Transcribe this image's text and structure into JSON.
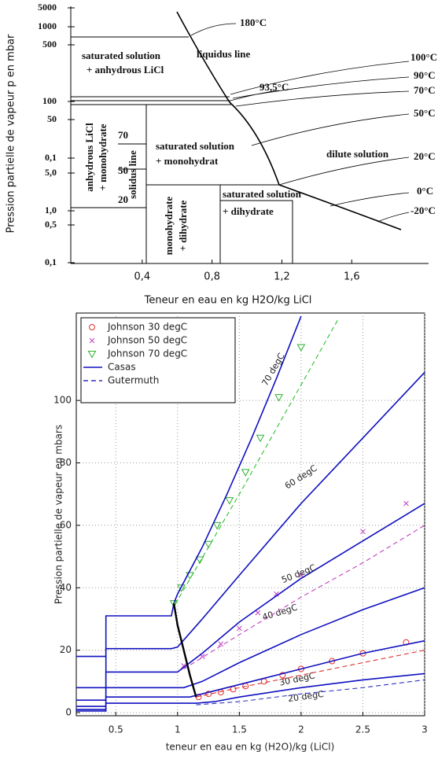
{
  "chart_data": [
    {
      "type": "phase-diagram",
      "ylabel": "Pression partielle de vapeur p en mbar",
      "xlabel": "Teneur en eau en kg H2O/kg LiCl",
      "xlim": [
        0,
        2.04
      ],
      "xticks": [
        {
          "value": 0.4,
          "label": "0,4"
        },
        {
          "value": 0.8,
          "label": "0,8"
        },
        {
          "value": 1.2,
          "label": "1,2"
        },
        {
          "value": 1.6,
          "label": "1,6"
        }
      ],
      "y_labels": [
        "5000",
        "1000",
        "500",
        "100",
        "50",
        "0,1",
        "5,0",
        "1,0",
        "0,5",
        "0,1"
      ],
      "regions": [
        {
          "text": [
            "saturated solution",
            "+ anhydrous LiCl"
          ]
        },
        {
          "text": [
            "liquidus line"
          ]
        },
        {
          "text": [
            "saturated solution",
            "+ monohydrat"
          ]
        },
        {
          "text": [
            "dilute solution"
          ]
        },
        {
          "text": [
            "saturated solution",
            "+ dihydrate"
          ]
        },
        {
          "text": [
            "anhydrous LiCl",
            "+ monohydrate"
          ]
        },
        {
          "text": [
            "solidus line"
          ]
        },
        {
          "text": [
            "monohydrate",
            "+ dihydrate"
          ]
        }
      ],
      "annotations": [
        "70",
        "50",
        "20"
      ],
      "temperatures": [
        "180°C",
        "100°C",
        "90°C",
        "93,5°C",
        "70°C",
        "50°C",
        "20°C",
        "0°C",
        "-20°C"
      ]
    },
    {
      "type": "line",
      "ylabel": "Pression partielle de vapeur en mbars",
      "xlabel": "teneur en eau en kg (H2O)/kg (LiCl)",
      "xlim": [
        0.18,
        3
      ],
      "ylim": [
        -1,
        128
      ],
      "xticks": [
        0.5,
        1,
        1.5,
        2,
        2.5,
        3
      ],
      "yticks": [
        0,
        20,
        40,
        60,
        80,
        100
      ],
      "grid": true,
      "legend": "top-left",
      "series": [
        {
          "name": "Johnson 30 degC",
          "color": "#e03030",
          "marker": "circle",
          "x": [
            1.17,
            1.25,
            1.35,
            1.45,
            1.55,
            1.7,
            1.85,
            2.0,
            2.25,
            2.5,
            2.85
          ],
          "values": [
            5,
            6,
            6.5,
            7.5,
            8.5,
            10,
            12,
            14,
            16.5,
            19,
            22.5
          ]
        },
        {
          "name": "Johnson 50 degC",
          "color": "#c040c0",
          "marker": "cross",
          "x": [
            1.05,
            1.2,
            1.35,
            1.5,
            1.65,
            1.8,
            2.0,
            2.5,
            2.85
          ],
          "values": [
            15,
            18,
            22,
            27,
            32,
            38,
            44,
            58,
            67
          ]
        },
        {
          "name": "Johnson 70 degC",
          "color": "#30b030",
          "marker": "triangle",
          "x": [
            0.97,
            1.03,
            1.1,
            1.18,
            1.25,
            1.32,
            1.42,
            1.55,
            1.67,
            1.82,
            2.0
          ],
          "values": [
            35,
            40,
            44,
            49,
            54,
            60,
            68,
            77,
            88,
            101,
            117
          ]
        },
        {
          "name": "Casas",
          "color": "#1010c0",
          "style": "solid",
          "curves": [
            {
              "label": "70 degC",
              "x": [
                0.18,
                0.42,
                0.42,
                0.95,
                0.97,
                1.0,
                1.2,
                1.4,
                1.6,
                1.8,
                2.0
              ],
              "values": [
                18,
                18,
                31,
                31,
                35,
                38,
                53,
                70,
                88,
                107,
                127
              ]
            },
            {
              "label": "60 degC",
              "x": [
                0.18,
                0.42,
                0.42,
                0.95,
                1.0,
                1.2,
                1.5,
                2.0,
                2.5,
                3.0
              ],
              "values": [
                8,
                8,
                20.5,
                20.5,
                21,
                30,
                44,
                67,
                88,
                109
              ]
            },
            {
              "label": "50 degC",
              "x": [
                0.18,
                0.42,
                0.42,
                1.0,
                1.2,
                1.5,
                2.0,
                2.5,
                3.0
              ],
              "values": [
                4,
                4,
                13,
                13,
                19,
                29,
                43,
                55,
                67
              ]
            },
            {
              "label": "40 degC",
              "x": [
                0.18,
                0.42,
                0.42,
                1.05,
                1.2,
                1.5,
                2.0,
                2.5,
                3.0
              ],
              "values": [
                2,
                2,
                8,
                8,
                10,
                16,
                25,
                33,
                40
              ]
            },
            {
              "label": "30 degC",
              "x": [
                0.18,
                0.42,
                0.42,
                1.1,
                1.2,
                1.5,
                2.0,
                2.5,
                3.0
              ],
              "values": [
                1,
                1,
                5,
                5,
                6,
                9,
                14,
                19,
                23
              ]
            },
            {
              "label": "20 degC",
              "x": [
                0.18,
                0.42,
                0.42,
                1.15,
                1.3,
                1.5,
                2.0,
                2.5,
                3.0
              ],
              "values": [
                0.5,
                0.5,
                3,
                3,
                3.5,
                5,
                8,
                10.5,
                12.5
              ]
            }
          ]
        },
        {
          "name": "Gutermuth",
          "color": "#3030c0",
          "style": "dashed",
          "curves": [
            {
              "color": "#30c030",
              "x": [
                0.97,
                1.0,
                1.5,
                2.0,
                2.3
              ],
              "values": [
                35,
                36,
                70,
                105,
                126
              ]
            },
            {
              "color": "#c040c0",
              "x": [
                1.05,
                1.5,
                2.0,
                2.5,
                3.0
              ],
              "values": [
                14,
                25,
                37,
                48,
                60
              ]
            },
            {
              "color": "#e03030",
              "x": [
                1.15,
                1.5,
                2.0,
                2.5,
                3.0
              ],
              "values": [
                5,
                8,
                12,
                16,
                20
              ]
            },
            {
              "color": "#3030c0",
              "x": [
                1.15,
                1.5,
                2.0,
                2.5,
                3.0
              ],
              "values": [
                2.5,
                3.5,
                6,
                8,
                10.5
              ]
            }
          ]
        }
      ],
      "boundary": {
        "color": "#000000",
        "x": [
          0.97,
          1.0,
          1.05,
          1.1,
          1.15
        ],
        "values": [
          35,
          28,
          20,
          12,
          5
        ]
      }
    }
  ]
}
